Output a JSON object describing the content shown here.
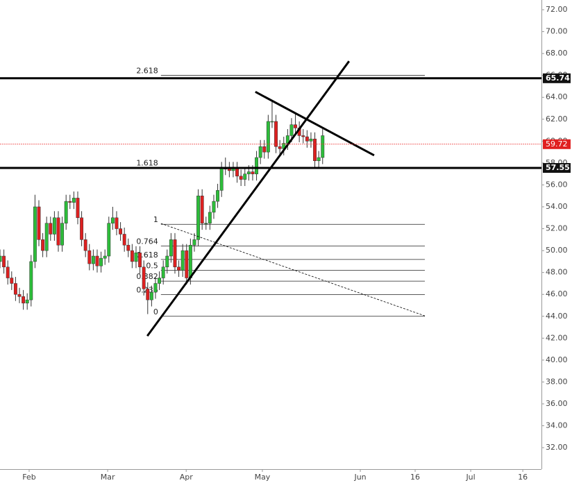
{
  "chart_data": {
    "type": "candlestick",
    "up_color": "#2dbd3a",
    "down_color": "#dd2020",
    "x": [
      0,
      1,
      2,
      3,
      4,
      5,
      6,
      7,
      8,
      9,
      10,
      11,
      12,
      13,
      14,
      15,
      16,
      17,
      18,
      19,
      20,
      21,
      22,
      23,
      24,
      25,
      26,
      27,
      28,
      29,
      30,
      31,
      32,
      33,
      34,
      35,
      36,
      37,
      38,
      39,
      40,
      41,
      42,
      43,
      44,
      45,
      46,
      47,
      48,
      49,
      50,
      51,
      52,
      53,
      54,
      55,
      56,
      57,
      58,
      59,
      60,
      61,
      62,
      63,
      64,
      65,
      66,
      67,
      68,
      69,
      70,
      71,
      72,
      73,
      74,
      75,
      76,
      77,
      78,
      79,
      80,
      81,
      82,
      83
    ],
    "open": [
      49,
      49.5,
      48.5,
      47.5,
      47,
      46,
      45.8,
      45.2,
      45.5,
      49,
      54,
      51,
      50,
      52.5,
      51.5,
      53,
      50.5,
      52.5,
      54.5,
      54.4,
      54.8,
      53,
      51,
      50,
      48.8,
      49.5,
      48.6,
      49.3,
      49.5,
      52.5,
      53,
      52,
      51.5,
      50.5,
      50,
      49,
      49.8,
      48.5,
      46.5,
      45.5,
      46.2,
      47,
      47.5,
      48.5,
      49.5,
      51,
      48.5,
      48.2,
      50,
      47.5,
      50.5,
      51,
      55,
      52.5,
      52.5,
      53.5,
      54.5,
      55.5,
      57.5,
      57.5,
      57.3,
      57.5,
      56.8,
      56.5,
      57,
      57.2,
      57,
      58.5,
      59.5,
      59,
      61.8,
      61.8,
      59.5,
      59.3,
      59.8,
      60.5,
      61.5,
      61.2,
      60.5,
      60.4,
      60,
      60.2,
      58.2,
      58.5
    ],
    "high": [
      50.1,
      50.1,
      49.1,
      48.1,
      47.6,
      46.6,
      46.4,
      46.1,
      49.6,
      55.1,
      54.6,
      51.6,
      53.1,
      53.1,
      53.6,
      53.6,
      53.1,
      55.1,
      55.1,
      55.4,
      55.4,
      53.6,
      51.6,
      50.6,
      50.1,
      50.1,
      49.9,
      50.1,
      53.1,
      54,
      53.6,
      52.6,
      52.1,
      51.1,
      50.6,
      50.4,
      50.4,
      49.1,
      47.1,
      46.8,
      47.6,
      48.1,
      49.1,
      50.1,
      51.6,
      51.6,
      49.1,
      50.6,
      50.6,
      51.1,
      51.6,
      55.6,
      55.6,
      53.1,
      54.1,
      55.1,
      56.1,
      58.1,
      58.5,
      58.1,
      58.1,
      58.1,
      57.4,
      57.6,
      57.8,
      57.8,
      59.1,
      60.1,
      60.1,
      62.4,
      63.6,
      62.4,
      60.1,
      60.4,
      61.1,
      62.1,
      62.6,
      61.8,
      61.1,
      61,
      60.8,
      60.8,
      59.1,
      61.1
    ],
    "low": [
      48.4,
      47.9,
      46.9,
      46.4,
      45.4,
      45.2,
      44.6,
      44.6,
      44.9,
      48.4,
      50.4,
      49.4,
      49.4,
      50.9,
      50.9,
      49.9,
      49.9,
      51.9,
      53.8,
      53.8,
      52.4,
      50.4,
      49.4,
      48.2,
      48.2,
      48,
      48,
      48.7,
      48.9,
      51.9,
      51.4,
      50.9,
      49.9,
      49.4,
      48.4,
      48.4,
      47.9,
      45.9,
      44.2,
      44.9,
      45.6,
      46.4,
      46.9,
      47.9,
      48.9,
      47.9,
      47.6,
      47.6,
      46.9,
      46.9,
      49.9,
      50.4,
      51.9,
      51.9,
      51.9,
      52.9,
      53.9,
      54.9,
      56.9,
      56.7,
      56.7,
      56.2,
      55.9,
      55.9,
      56.4,
      56.4,
      56.4,
      57.9,
      58.4,
      58.4,
      61.2,
      58.9,
      58.7,
      58.7,
      59.2,
      59.9,
      60.6,
      59.9,
      59.8,
      59.4,
      59.4,
      57.6,
      57.6,
      57.9
    ],
    "close": [
      49.5,
      48.5,
      47.5,
      47,
      46,
      45.8,
      45.2,
      45.5,
      49,
      54,
      51,
      50,
      52.5,
      51.5,
      53,
      50.5,
      52.5,
      54.5,
      54.4,
      54.8,
      53,
      51,
      50,
      48.8,
      49.5,
      48.6,
      49.3,
      49.5,
      52.5,
      53,
      52,
      51.5,
      50.5,
      50,
      49,
      49.8,
      48.5,
      46.5,
      45.5,
      46.2,
      47,
      47.5,
      48.5,
      49.5,
      51,
      48.5,
      48.2,
      50,
      47.5,
      50.5,
      51,
      55,
      52.5,
      52.5,
      53.5,
      54.5,
      55.5,
      57.5,
      57.5,
      57.3,
      57.5,
      56.8,
      56.5,
      57,
      57.2,
      57,
      58.5,
      59.5,
      59,
      61.8,
      61.8,
      59.5,
      59.3,
      59.8,
      60.5,
      61.5,
      61.2,
      60.5,
      60.4,
      60,
      60.2,
      58.2,
      58.5,
      60.5
    ],
    "xlim": [
      0,
      139.3
    ],
    "ylim": [
      30.04,
      72.89
    ],
    "xticks": [
      {
        "value": 7.5,
        "label": "Feb"
      },
      {
        "value": 27.7,
        "label": "Mar"
      },
      {
        "value": 47.9,
        "label": "Apr"
      },
      {
        "value": 67.5,
        "label": "May"
      },
      {
        "value": 92.7,
        "label": "Jun"
      },
      {
        "value": 106.8,
        "label": "16"
      },
      {
        "value": 121.1,
        "label": "Jul"
      },
      {
        "value": 134.5,
        "label": "16"
      }
    ],
    "yticks": [
      {
        "value": 72,
        "label": "72.00"
      },
      {
        "value": 70,
        "label": "70.00"
      },
      {
        "value": 68,
        "label": "68.00"
      },
      {
        "value": 66,
        "label": "66.00"
      },
      {
        "value": 64,
        "label": "64.00"
      },
      {
        "value": 62,
        "label": "62.00"
      },
      {
        "value": 60,
        "label": "60.00"
      },
      {
        "value": 58,
        "label": "58.00"
      },
      {
        "value": 56,
        "label": "56.00"
      },
      {
        "value": 54,
        "label": "54.00"
      },
      {
        "value": 52,
        "label": "52.00"
      },
      {
        "value": 50,
        "label": "50.00"
      },
      {
        "value": 48,
        "label": "48.00"
      },
      {
        "value": 46,
        "label": "46.00"
      },
      {
        "value": 44,
        "label": "44.00"
      },
      {
        "value": 42,
        "label": "42.00"
      },
      {
        "value": 40,
        "label": "40.00"
      },
      {
        "value": 38,
        "label": "38.00"
      },
      {
        "value": 36,
        "label": "36.00"
      },
      {
        "value": 34,
        "label": "34.00"
      },
      {
        "value": 32,
        "label": "32.00"
      }
    ],
    "levels": [
      65.74,
      57.55
    ],
    "last_price": 59.72,
    "fib": {
      "ratios": [
        0,
        0.236,
        0.382,
        0.5,
        0.618,
        0.764,
        1,
        1.618,
        2.618
      ],
      "prices": [
        44.0,
        45.98,
        47.21,
        48.2,
        49.19,
        50.42,
        52.4,
        57.59,
        66.0
      ],
      "x": [
        41.4,
        109.3
      ]
    },
    "trendlines": [
      {
        "x": [
          37.9,
          89.8
        ],
        "y": [
          42.2,
          67.3
        ],
        "style": "solid"
      },
      {
        "x": [
          65.7,
          96.25
        ],
        "y": [
          64.5,
          58.7
        ],
        "style": "solid"
      },
      {
        "x": [
          41.4,
          109.3
        ],
        "y": [
          52.48,
          44.04
        ],
        "style": "dashed"
      }
    ]
  }
}
